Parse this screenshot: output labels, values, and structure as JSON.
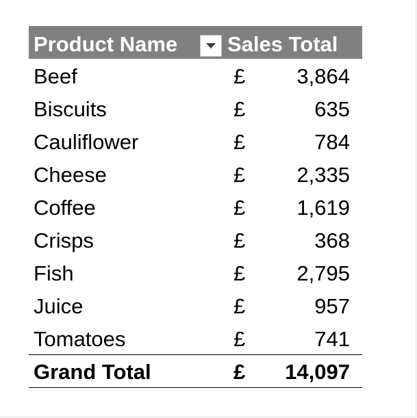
{
  "pivot_table": {
    "header": {
      "product_name_label": "Product Name",
      "sales_total_label": "Sales Total",
      "filter_icon": "chevron-down-icon"
    },
    "rows": [
      {
        "product": "Beef",
        "currency": "£",
        "value": "3,864"
      },
      {
        "product": "Biscuits",
        "currency": "£",
        "value": "635"
      },
      {
        "product": "Cauliflower",
        "currency": "£",
        "value": "784"
      },
      {
        "product": "Cheese",
        "currency": "£",
        "value": "2,335"
      },
      {
        "product": "Coffee",
        "currency": "£",
        "value": "1,619"
      },
      {
        "product": "Crisps",
        "currency": "£",
        "value": "368"
      },
      {
        "product": "Fish",
        "currency": "£",
        "value": "2,795"
      },
      {
        "product": "Juice",
        "currency": "£",
        "value": "957"
      },
      {
        "product": "Tomatoes",
        "currency": "£",
        "value": "741"
      }
    ],
    "grand_total": {
      "label": "Grand Total",
      "currency": "£",
      "value": "14,097"
    },
    "colors": {
      "header_background": "#808080",
      "header_text": "#ffffff"
    }
  }
}
